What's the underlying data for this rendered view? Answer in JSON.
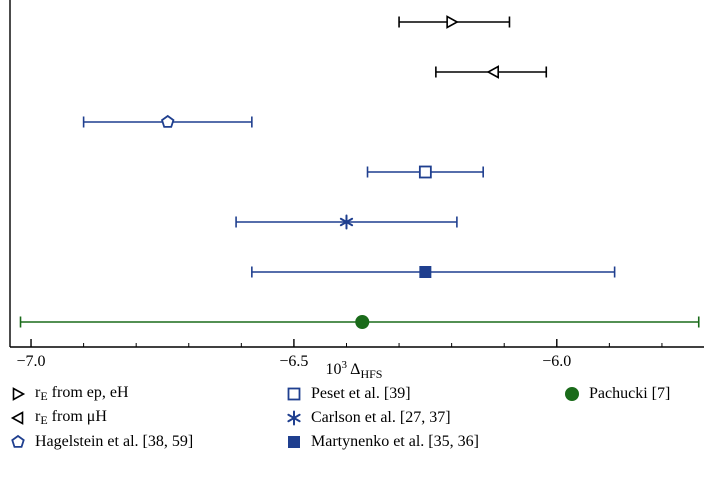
{
  "chart_data": {
    "type": "scatter",
    "xlabel": {
      "prefix": "10",
      "exp": "3",
      "symbol": "Δ",
      "sub": "HFS"
    },
    "xlim": [
      -7.04,
      -5.72
    ],
    "xticks": [
      -7.0,
      -6.5,
      -6.0
    ],
    "xtick_labels": [
      "−7.0",
      "−6.5",
      "−6.0"
    ],
    "series": [
      {
        "name": "r_E from ep, eH",
        "label_main": "r",
        "label_sub": "E",
        "label_rest": " from ep, eH",
        "value": -6.2,
        "low": -6.3,
        "high": -6.09,
        "marker": "triangle-right",
        "color": "#000000",
        "row": 0
      },
      {
        "name": "r_E from μH",
        "label_main": "r",
        "label_sub": "E",
        "label_rest": " from μH",
        "value": -6.12,
        "low": -6.23,
        "high": -6.02,
        "marker": "triangle-left",
        "color": "#000000",
        "row": 1
      },
      {
        "name": "Hagelstein et al. [38, 59]",
        "label_main": "Hagelstein et al. [38, 59]",
        "label_sub": "",
        "label_rest": "",
        "value": -6.74,
        "low": -6.9,
        "high": -6.58,
        "marker": "pentagon-open",
        "color": "#1f3f8f",
        "row": 2
      },
      {
        "name": "Peset et al. [39]",
        "label_main": "Peset et al. [39]",
        "label_sub": "",
        "label_rest": "",
        "value": -6.25,
        "low": -6.36,
        "high": -6.14,
        "marker": "square-open",
        "color": "#1f3f8f",
        "row": 3
      },
      {
        "name": "Carlson et al. [27, 37]",
        "label_main": "Carlson et al. [27, 37]",
        "label_sub": "",
        "label_rest": "",
        "value": -6.4,
        "low": -6.61,
        "high": -6.19,
        "marker": "asterisk",
        "color": "#1f3f8f",
        "row": 4
      },
      {
        "name": "Martynenko et al. [35, 36]",
        "label_main": "Martynenko et al. [35, 36]",
        "label_sub": "",
        "label_rest": "",
        "value": -6.25,
        "low": -6.58,
        "high": -5.89,
        "marker": "square-filled",
        "color": "#1f3f8f",
        "row": 5
      },
      {
        "name": "Pachucki [7]",
        "label_main": "Pachucki [7]",
        "label_sub": "",
        "label_rest": "",
        "value": -6.37,
        "low": -7.02,
        "high": -5.73,
        "marker": "circle-filled",
        "color": "#1a6b1a",
        "row": 6
      }
    ],
    "legend_position": "bottom",
    "grid": false
  }
}
